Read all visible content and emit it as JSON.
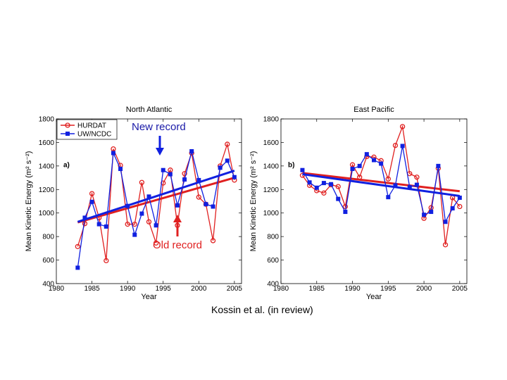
{
  "colors": {
    "hurdat": "#e02020",
    "uwncdc": "#1020e0",
    "new_record": "#1a1aa8",
    "old_record": "#e02020"
  },
  "annotations": {
    "new_record": "New record",
    "old_record": "Old record",
    "citation": "Kossin et al. (in review)"
  },
  "chart_data": [
    {
      "type": "line",
      "panel_label": "a)",
      "title": "North Atlantic",
      "xlabel": "Year",
      "ylabel": "Mean Kinetic Energy (m² s⁻²)",
      "xlim": [
        1980,
        2006
      ],
      "ylim": [
        400,
        1800
      ],
      "xticks": [
        1980,
        1985,
        1990,
        1995,
        2000,
        2005
      ],
      "yticks": [
        400,
        600,
        800,
        1000,
        1200,
        1400,
        1600,
        1800
      ],
      "legend": "top-left",
      "x": [
        1983,
        1984,
        1985,
        1986,
        1987,
        1988,
        1989,
        1990,
        1991,
        1992,
        1993,
        1994,
        1995,
        1996,
        1997,
        1998,
        1999,
        2000,
        2001,
        2002,
        2003,
        2004,
        2005
      ],
      "series": [
        {
          "name": "HURDAT",
          "marker": "circle",
          "values": [
            715,
            910,
            1165,
            960,
            595,
            1545,
            1405,
            905,
            905,
            1260,
            925,
            745,
            1255,
            1365,
            895,
            1335,
            1510,
            1135,
            1075,
            765,
            1400,
            1585,
            1280
          ],
          "trend": [
            920,
            1300
          ]
        },
        {
          "name": "UW/NCDC",
          "marker": "square",
          "values": [
            535,
            960,
            1095,
            905,
            885,
            1510,
            1375,
            1060,
            815,
            995,
            1140,
            895,
            1365,
            1330,
            1065,
            1285,
            1525,
            1280,
            1075,
            1055,
            1385,
            1445,
            1305
          ],
          "trend": [
            925,
            1360
          ]
        }
      ]
    },
    {
      "type": "line",
      "panel_label": "b)",
      "title": "East Pacific",
      "xlabel": "Year",
      "ylabel": "Mean Kinetic Energy (m² s⁻²)",
      "xlim": [
        1980,
        2006
      ],
      "ylim": [
        400,
        1800
      ],
      "xticks": [
        1980,
        1985,
        1990,
        1995,
        2000,
        2005
      ],
      "yticks": [
        400,
        600,
        800,
        1000,
        1200,
        1400,
        1600,
        1800
      ],
      "x": [
        1983,
        1984,
        1985,
        1986,
        1987,
        1988,
        1989,
        1990,
        1991,
        1992,
        1993,
        1994,
        1995,
        1996,
        1997,
        1998,
        1999,
        2000,
        2001,
        2002,
        2003,
        2004,
        2005
      ],
      "series": [
        {
          "name": "HURDAT",
          "marker": "circle",
          "values": [
            1320,
            1235,
            1190,
            1170,
            1240,
            1225,
            1055,
            1410,
            1305,
            1480,
            1475,
            1445,
            1290,
            1575,
            1735,
            1335,
            1305,
            955,
            1045,
            1380,
            730,
            1130,
            1055
          ],
          "trend": [
            1340,
            1185
          ]
        },
        {
          "name": "UW/NCDC",
          "marker": "square",
          "values": [
            1365,
            1260,
            1215,
            1255,
            1245,
            1120,
            1010,
            1375,
            1400,
            1500,
            1450,
            1420,
            1135,
            1235,
            1570,
            1220,
            1240,
            985,
            1010,
            1400,
            925,
            1040,
            1130
          ],
          "trend": [
            1330,
            1145
          ]
        }
      ]
    }
  ]
}
